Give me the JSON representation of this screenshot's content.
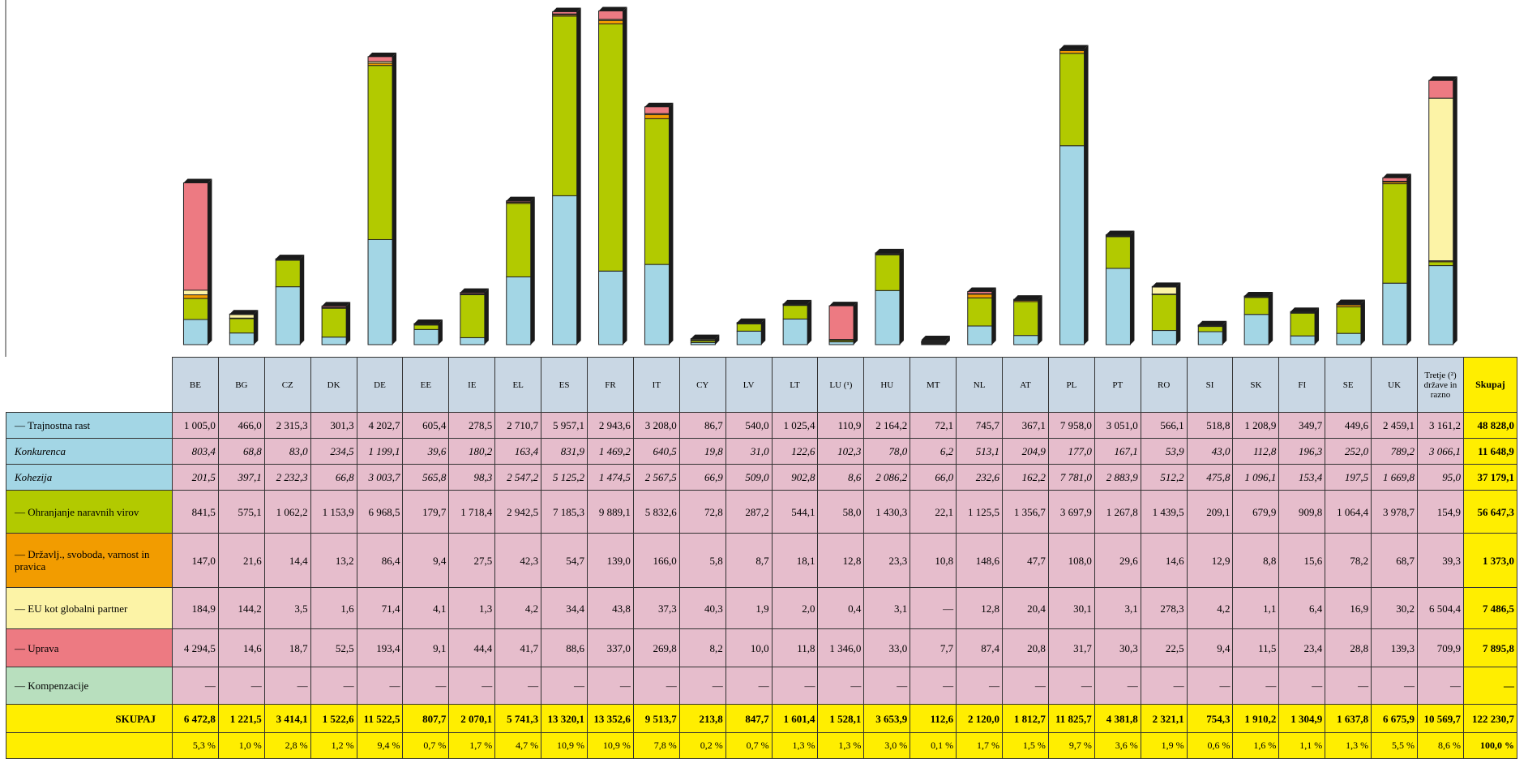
{
  "countries": [
    "BE",
    "BG",
    "CZ",
    "DK",
    "DE",
    "EE",
    "IE",
    "EL",
    "ES",
    "FR",
    "IT",
    "CY",
    "LV",
    "LT",
    "LU (¹)",
    "HU",
    "MT",
    "NL",
    "AT",
    "PL",
    "PT",
    "RO",
    "SI",
    "SK",
    "FI",
    "SE",
    "UK",
    "Tretje (²) države in razno"
  ],
  "total_header": "Skupaj",
  "row_labels": {
    "trajnostna": "— Trajnostna rast",
    "konkurenca": "Konkurenca",
    "kohezija": "Kohezija",
    "ohranjanje": "— Ohranjanje naravnih virov",
    "drzavljanstvo": "— Državlj., svoboda, varnost in pravica",
    "eu_partner": "— EU kot globalni partner",
    "uprava": "— Uprava",
    "kompenzacije": "— Kompenzacije",
    "skupaj": "SKUPAJ"
  },
  "rows": {
    "trajnostna": [
      "1 005,0",
      "466,0",
      "2 315,3",
      "301,3",
      "4 202,7",
      "605,4",
      "278,5",
      "2 710,7",
      "5 957,1",
      "2 943,6",
      "3 208,0",
      "86,7",
      "540,0",
      "1 025,4",
      "110,9",
      "2 164,2",
      "72,1",
      "745,7",
      "367,1",
      "7 958,0",
      "3 051,0",
      "566,1",
      "518,8",
      "1 208,9",
      "349,7",
      "449,6",
      "2 459,1",
      "3 161,2",
      "48 828,0"
    ],
    "konkurenca": [
      "803,4",
      "68,8",
      "83,0",
      "234,5",
      "1 199,1",
      "39,6",
      "180,2",
      "163,4",
      "831,9",
      "1 469,2",
      "640,5",
      "19,8",
      "31,0",
      "122,6",
      "102,3",
      "78,0",
      "6,2",
      "513,1",
      "204,9",
      "177,0",
      "167,1",
      "53,9",
      "43,0",
      "112,8",
      "196,3",
      "252,0",
      "789,2",
      "3 066,1",
      "11 648,9"
    ],
    "kohezija": [
      "201,5",
      "397,1",
      "2 232,3",
      "66,8",
      "3 003,7",
      "565,8",
      "98,3",
      "2 547,2",
      "5 125,2",
      "1 474,5",
      "2 567,5",
      "66,9",
      "509,0",
      "902,8",
      "8,6",
      "2 086,2",
      "66,0",
      "232,6",
      "162,2",
      "7 781,0",
      "2 883,9",
      "512,2",
      "475,8",
      "1 096,1",
      "153,4",
      "197,5",
      "1 669,8",
      "95,0",
      "37 179,1"
    ],
    "ohranjanje": [
      "841,5",
      "575,1",
      "1 062,2",
      "1 153,9",
      "6 968,5",
      "179,7",
      "1 718,4",
      "2 942,5",
      "7 185,3",
      "9 889,1",
      "5 832,6",
      "72,8",
      "287,2",
      "544,1",
      "58,0",
      "1 430,3",
      "22,1",
      "1 125,5",
      "1 356,7",
      "3 697,9",
      "1 267,8",
      "1 439,5",
      "209,1",
      "679,9",
      "909,8",
      "1 064,4",
      "3 978,7",
      "154,9",
      "56 647,3"
    ],
    "drzavljanstvo": [
      "147,0",
      "21,6",
      "14,4",
      "13,2",
      "86,4",
      "9,4",
      "27,5",
      "42,3",
      "54,7",
      "139,0",
      "166,0",
      "5,8",
      "8,7",
      "18,1",
      "12,8",
      "23,3",
      "10,8",
      "148,6",
      "47,7",
      "108,0",
      "29,6",
      "14,6",
      "12,9",
      "8,8",
      "15,6",
      "78,2",
      "68,7",
      "39,3",
      "1 373,0"
    ],
    "eu_partner": [
      "184,9",
      "144,2",
      "3,5",
      "1,6",
      "71,4",
      "4,1",
      "1,3",
      "4,2",
      "34,4",
      "43,8",
      "37,3",
      "40,3",
      "1,9",
      "2,0",
      "0,4",
      "3,1",
      "—",
      "12,8",
      "20,4",
      "30,1",
      "3,1",
      "278,3",
      "4,2",
      "1,1",
      "6,4",
      "16,9",
      "30,2",
      "6 504,4",
      "7 486,5"
    ],
    "uprava": [
      "4 294,5",
      "14,6",
      "18,7",
      "52,5",
      "193,4",
      "9,1",
      "44,4",
      "41,7",
      "88,6",
      "337,0",
      "269,8",
      "8,2",
      "10,0",
      "11,8",
      "1 346,0",
      "33,0",
      "7,7",
      "87,4",
      "20,8",
      "31,7",
      "30,3",
      "22,5",
      "9,4",
      "11,5",
      "23,4",
      "28,8",
      "139,3",
      "709,9",
      "7 895,8"
    ],
    "kompenzacije": [
      "—",
      "—",
      "—",
      "—",
      "—",
      "—",
      "—",
      "—",
      "—",
      "—",
      "—",
      "—",
      "—",
      "—",
      "—",
      "—",
      "—",
      "—",
      "—",
      "—",
      "—",
      "—",
      "—",
      "—",
      "—",
      "—",
      "—",
      "—",
      "—"
    ],
    "skupaj": [
      "6 472,8",
      "1 221,5",
      "3 414,1",
      "1 522,6",
      "11 522,5",
      "807,7",
      "2 070,1",
      "5 741,3",
      "13 320,1",
      "13 352,6",
      "9 513,7",
      "213,8",
      "847,7",
      "1 601,4",
      "1 528,1",
      "3 653,9",
      "112,6",
      "2 120,0",
      "1 812,7",
      "11 825,7",
      "4 381,8",
      "2 321,1",
      "754,3",
      "1 910,2",
      "1 304,9",
      "1 637,8",
      "6 675,9",
      "10 569,7",
      "122 230,7"
    ],
    "skupaj_pct": [
      "5,3 %",
      "1,0 %",
      "2,8 %",
      "1,2 %",
      "9,4 %",
      "0,7 %",
      "1,7 %",
      "4,7 %",
      "10,9 %",
      "10,9 %",
      "7,8 %",
      "0,2 %",
      "0,7 %",
      "1,3 %",
      "1,3 %",
      "3,0 %",
      "0,1 %",
      "1,7 %",
      "1,5 %",
      "9,7 %",
      "3,6 %",
      "1,9 %",
      "0,6 %",
      "1,6 %",
      "1,1 %",
      "1,3 %",
      "5,5 %",
      "8,6 %",
      "100,0 %"
    ]
  },
  "chart_data": {
    "type": "bar",
    "stacked": true,
    "categories": [
      "BE",
      "BG",
      "CZ",
      "DK",
      "DE",
      "EE",
      "IE",
      "EL",
      "ES",
      "FR",
      "IT",
      "CY",
      "LV",
      "LT",
      "LU (¹)",
      "HU",
      "MT",
      "NL",
      "AT",
      "PL",
      "PT",
      "RO",
      "SI",
      "SK",
      "FI",
      "SE",
      "UK",
      "Tretje (²) države in razno"
    ],
    "series": [
      {
        "name": "Trajnostna rast",
        "color": "#a3d6e5",
        "values": [
          1005.0,
          466.0,
          2315.3,
          301.3,
          4202.7,
          605.4,
          278.5,
          2710.7,
          5957.1,
          2943.6,
          3208.0,
          86.7,
          540.0,
          1025.4,
          110.9,
          2164.2,
          72.1,
          745.7,
          367.1,
          7958.0,
          3051.0,
          566.1,
          518.8,
          1208.9,
          349.7,
          449.6,
          2459.1,
          3161.2
        ]
      },
      {
        "name": "Ohranjanje naravnih virov",
        "color": "#b2ca00",
        "values": [
          841.5,
          575.1,
          1062.2,
          1153.9,
          6968.5,
          179.7,
          1718.4,
          2942.5,
          7185.3,
          9889.1,
          5832.6,
          72.8,
          287.2,
          544.1,
          58.0,
          1430.3,
          22.1,
          1125.5,
          1356.7,
          3697.9,
          1267.8,
          1439.5,
          209.1,
          679.9,
          909.8,
          1064.4,
          3978.7,
          154.9
        ]
      },
      {
        "name": "Državlj., svoboda, varnost in pravica",
        "color": "#f29c00",
        "values": [
          147.0,
          21.6,
          14.4,
          13.2,
          86.4,
          9.4,
          27.5,
          42.3,
          54.7,
          139.0,
          166.0,
          5.8,
          8.7,
          18.1,
          12.8,
          23.3,
          10.8,
          148.6,
          47.7,
          108.0,
          29.6,
          14.6,
          12.9,
          8.8,
          15.6,
          78.2,
          68.7,
          39.3
        ]
      },
      {
        "name": "EU kot globalni partner",
        "color": "#fcf3a6",
        "values": [
          184.9,
          144.2,
          3.5,
          1.6,
          71.4,
          4.1,
          1.3,
          4.2,
          34.4,
          43.8,
          37.3,
          40.3,
          1.9,
          2.0,
          0.4,
          3.1,
          0,
          12.8,
          20.4,
          30.1,
          3.1,
          278.3,
          4.2,
          1.1,
          6.4,
          16.9,
          30.2,
          6504.4
        ]
      },
      {
        "name": "Uprava",
        "color": "#ed7a82",
        "values": [
          4294.5,
          14.6,
          18.7,
          52.5,
          193.4,
          9.1,
          44.4,
          41.7,
          88.6,
          337.0,
          269.8,
          8.2,
          10.0,
          11.8,
          1346.0,
          33.0,
          7.7,
          87.4,
          20.8,
          31.7,
          30.3,
          22.5,
          9.4,
          11.5,
          23.4,
          28.8,
          139.3,
          709.9
        ]
      },
      {
        "name": "Kompenzacije",
        "color": "#b8dfbe",
        "values": [
          0,
          0,
          0,
          0,
          0,
          0,
          0,
          0,
          0,
          0,
          0,
          0,
          0,
          0,
          0,
          0,
          0,
          0,
          0,
          0,
          0,
          0,
          0,
          0,
          0,
          0,
          0,
          0
        ]
      }
    ],
    "ylim": [
      0,
      13400
    ]
  }
}
